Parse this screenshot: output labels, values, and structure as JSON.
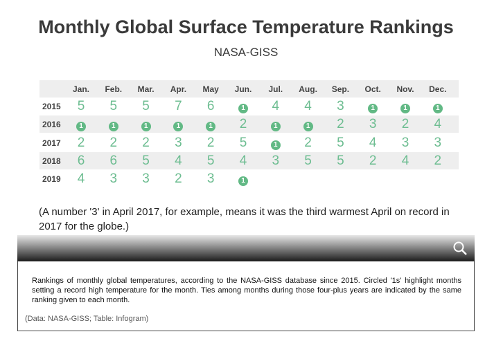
{
  "header": {
    "title": "Monthly Global Surface Temperature Rankings",
    "subtitle": "NASA-GISS"
  },
  "table": {
    "columns": [
      "Jan.",
      "Feb.",
      "Mar.",
      "Apr.",
      "May",
      "Jun.",
      "Jul.",
      "Aug.",
      "Sep.",
      "Oct.",
      "Nov.",
      "Dec."
    ],
    "rows": [
      {
        "year": "2015",
        "values": [
          5,
          5,
          5,
          7,
          6,
          1,
          4,
          4,
          3,
          1,
          1,
          1
        ]
      },
      {
        "year": "2016",
        "values": [
          1,
          1,
          1,
          1,
          1,
          2,
          1,
          1,
          2,
          3,
          2,
          4
        ]
      },
      {
        "year": "2017",
        "values": [
          2,
          2,
          2,
          3,
          2,
          5,
          1,
          2,
          5,
          4,
          3,
          3
        ]
      },
      {
        "year": "2018",
        "values": [
          6,
          6,
          5,
          4,
          5,
          4,
          3,
          5,
          5,
          2,
          4,
          2
        ]
      },
      {
        "year": "2019",
        "values": [
          4,
          3,
          3,
          2,
          3,
          1
        ]
      }
    ]
  },
  "note": "(A number '3' in April 2017, for example, means it was the third warmest April on record in 2017 for the globe.)",
  "caption": "Rankings of monthly global temperatures, according to the NASA-GISS database since 2015. Circled '1s' highlight months setting a record high temperature for the month. Ties among months during those four-plus years are indicated by the same ranking given to each month.",
  "credit": "(Data: NASA-GISS; Table: Infogram)"
}
